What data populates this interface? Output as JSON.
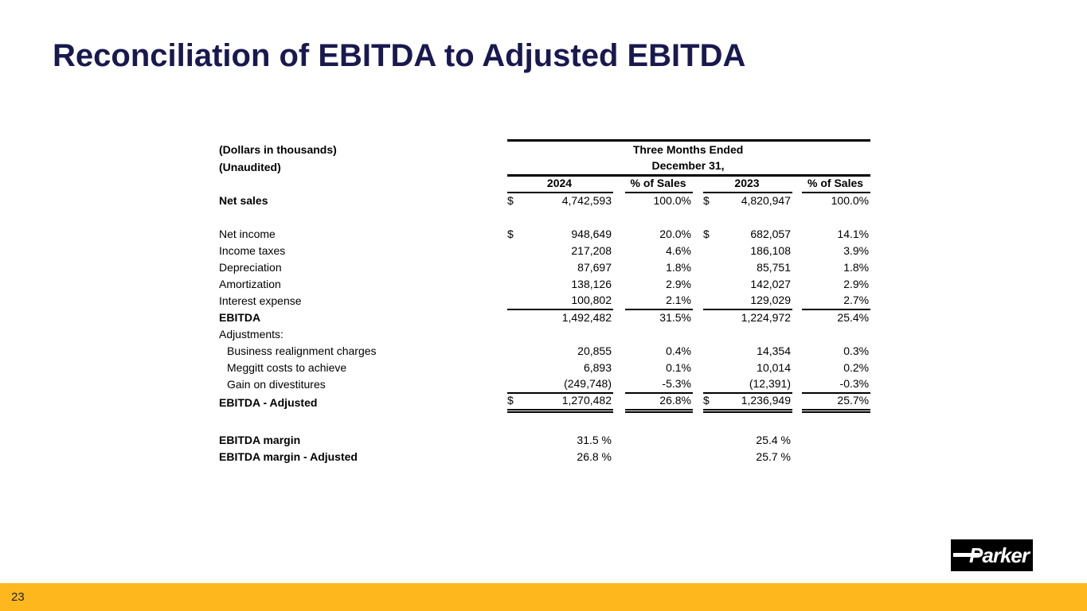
{
  "slide": {
    "title": "Reconciliation of EBITDA to Adjusted EBITDA",
    "title_color": "#191950",
    "accent_bar_color": "#FEB81D",
    "page_number": "23",
    "logo_text": "Parker"
  },
  "table": {
    "notes": [
      "(Dollars in thousands)",
      "(Unaudited)"
    ],
    "period_lines": [
      "Three Months Ended",
      "December 31,"
    ],
    "column_headers": [
      "2024",
      "% of Sales",
      "2023",
      "% of Sales"
    ],
    "rows": [
      {
        "label": "Net sales",
        "bold": true,
        "d1": "$",
        "v1": "4,742,593",
        "p1": "100.0%",
        "d2": "$",
        "v2": "4,820,947",
        "p2": "100.0%"
      },
      {
        "spacer": 21
      },
      {
        "label": "Net income",
        "d1": "$",
        "v1": "948,649",
        "p1": "20.0%",
        "d2": "$",
        "v2": "682,057",
        "p2": "14.1%"
      },
      {
        "label": "Income taxes",
        "v1": "217,208",
        "p1": "4.6%",
        "v2": "186,108",
        "p2": "3.9%"
      },
      {
        "label": "Depreciation",
        "v1": "87,697",
        "p1": "1.8%",
        "v2": "85,751",
        "p2": "1.8%"
      },
      {
        "label": "Amortization",
        "v1": "138,126",
        "p1": "2.9%",
        "v2": "142,027",
        "p2": "2.9%"
      },
      {
        "label": "Interest expense",
        "v1": "100,802",
        "p1": "2.1%",
        "v2": "129,029",
        "p2": "2.7%"
      },
      {
        "label": "EBITDA",
        "bold": true,
        "rule_above": true,
        "v1": "1,492,482",
        "p1": "31.5%",
        "v2": "1,224,972",
        "p2": "25.4%"
      },
      {
        "label": "Adjustments:"
      },
      {
        "label": "Business realignment charges",
        "indent": true,
        "v1": "20,855",
        "p1": "0.4%",
        "v2": "14,354",
        "p2": "0.3%"
      },
      {
        "label": "Meggitt costs to achieve",
        "indent": true,
        "v1": "6,893",
        "p1": "0.1%",
        "v2": "10,014",
        "p2": "0.2%"
      },
      {
        "label": "Gain on divestitures",
        "indent": true,
        "v1": "(249,748)",
        "p1": "-5.3%",
        "v2": "(12,391)",
        "p2": "-0.3%"
      },
      {
        "label": "EBITDA - Adjusted",
        "bold": true,
        "rule_above": true,
        "double_below": true,
        "d1": "$",
        "v1": "1,270,482",
        "p1": "26.8%",
        "d2": "$",
        "v2": "1,236,949",
        "p2": "25.7%"
      },
      {
        "spacer": 26
      },
      {
        "label": "EBITDA margin",
        "bold": true,
        "v1": "31.5 %",
        "v2": "25.4 %"
      },
      {
        "label": "EBITDA margin - Adjusted",
        "bold": true,
        "v1": "26.8 %",
        "v2": "25.7 %"
      }
    ]
  }
}
